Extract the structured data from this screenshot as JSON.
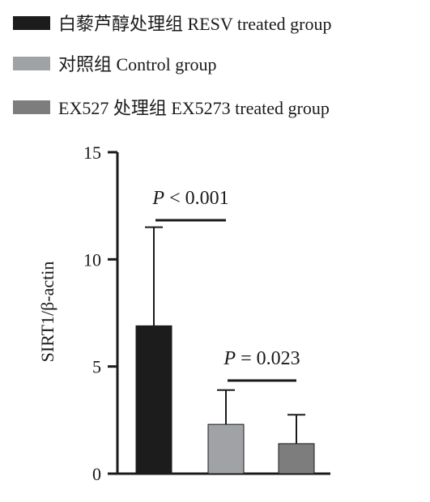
{
  "chart_data": {
    "type": "bar",
    "title": "",
    "xlabel": "",
    "ylabel": "SIRT1/β-actin",
    "ylim": [
      0,
      15
    ],
    "yticks": [
      0,
      5,
      10,
      15
    ],
    "grid": false,
    "legend_position": "top-left",
    "series": [
      {
        "name": "白藜芦醇处理组 RESV treated group",
        "value": 6.9,
        "error": 4.6,
        "color": "#1c1c1c"
      },
      {
        "name": "对照组 Control group",
        "value": 2.3,
        "error": 1.6,
        "color": "#a0a2a5"
      },
      {
        "name": "EX527 处理组 EX5273 treated group",
        "value": 1.4,
        "error": 1.35,
        "color": "#7d7d7d"
      }
    ],
    "annotations": [
      {
        "text_italic": "P",
        "text": " < 0.001",
        "from": 0,
        "to": 1
      },
      {
        "text_italic": "P",
        "text": " = 0.023",
        "from": 1,
        "to": 2
      }
    ]
  }
}
